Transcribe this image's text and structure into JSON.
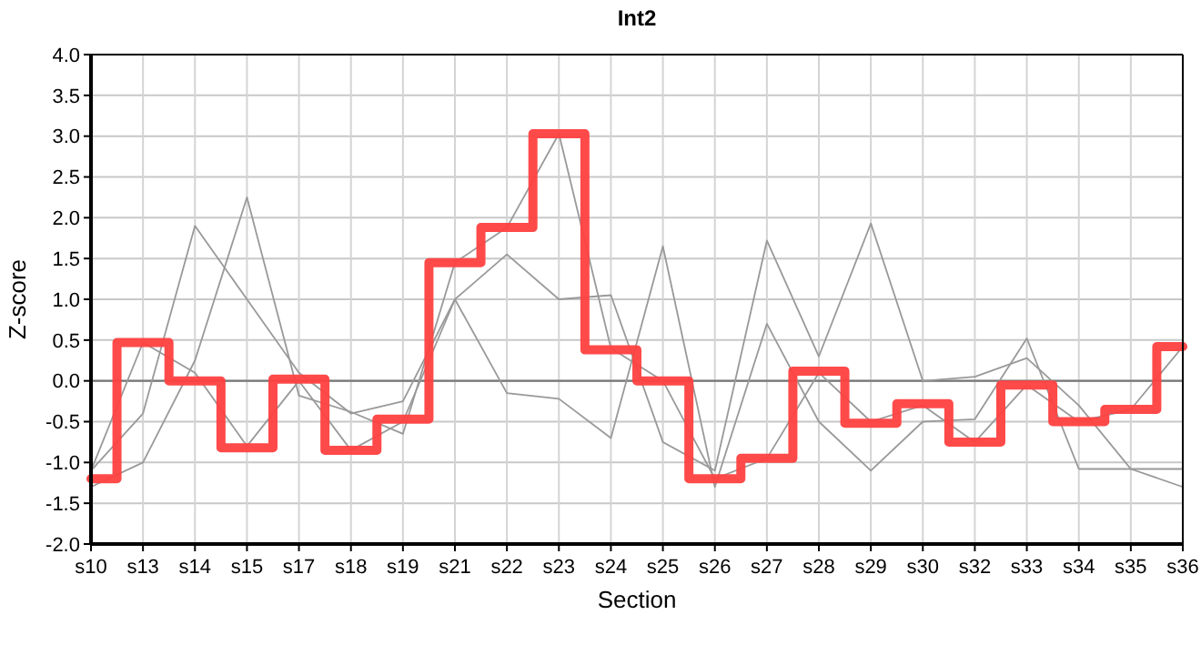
{
  "chart_data": {
    "type": "line",
    "title": "Int2",
    "xlabel": "Section",
    "ylabel": "Z-score",
    "categories": [
      "s10",
      "s13",
      "s14",
      "s15",
      "s17",
      "s18",
      "s19",
      "s21",
      "s22",
      "s23",
      "s24",
      "s25",
      "s26",
      "s27",
      "s28",
      "s29",
      "s30",
      "s32",
      "s33",
      "s34",
      "s35",
      "s36"
    ],
    "series": [
      {
        "color": "#999999",
        "values": [
          -1.1,
          -0.4,
          1.9,
          1.0,
          0.1,
          -0.4,
          -0.25,
          1.0,
          1.55,
          1.0,
          1.05,
          -0.75,
          -1.1,
          1.72,
          0.3,
          1.93,
          0.0,
          0.05,
          0.28,
          -0.3,
          -1.08,
          -1.08
        ]
      },
      {
        "color": "#999999",
        "values": [
          -1.3,
          -1.0,
          0.25,
          2.25,
          -0.18,
          -0.38,
          -0.65,
          1.45,
          1.88,
          3.03,
          0.4,
          0.0,
          -1.2,
          -0.95,
          0.1,
          -0.5,
          -0.3,
          -0.75,
          -0.05,
          -0.5,
          -0.35,
          0.42
        ]
      },
      {
        "color": "#999999",
        "values": [
          -1.1,
          0.47,
          0.1,
          -0.8,
          0.0,
          -0.85,
          -0.5,
          1.0,
          -0.15,
          -0.22,
          -0.7,
          1.65,
          -1.3,
          0.7,
          -0.5,
          -1.1,
          -0.5,
          -0.47,
          0.52,
          -1.08,
          -1.08,
          -1.3
        ]
      },
      {
        "type": "step",
        "color": "#ff4040",
        "values": [
          -1.2,
          0.47,
          0.0,
          -0.82,
          0.02,
          -0.85,
          -0.47,
          1.45,
          1.88,
          3.03,
          0.38,
          0.0,
          -1.2,
          -0.95,
          0.12,
          -0.52,
          -0.28,
          -0.75,
          -0.05,
          -0.5,
          -0.35,
          0.42
        ]
      }
    ],
    "ylim": [
      -2,
      4
    ],
    "yticks": [
      {
        "value": -2,
        "label": "-2.0"
      },
      {
        "value": -1.5,
        "label": "-1.5"
      },
      {
        "value": -1,
        "label": "-1.0"
      },
      {
        "value": -0.5,
        "label": "-0.5"
      },
      {
        "value": 0,
        "label": "0.0"
      },
      {
        "value": 0.5,
        "label": "0.5"
      },
      {
        "value": 1,
        "label": "1.0"
      },
      {
        "value": 1.5,
        "label": "1.5"
      },
      {
        "value": 2,
        "label": "2.0"
      },
      {
        "value": 2.5,
        "label": "2.5"
      },
      {
        "value": 3,
        "label": "3.0"
      },
      {
        "value": 3.5,
        "label": "3.5"
      },
      {
        "value": 4,
        "label": "4.0"
      }
    ],
    "grid": true,
    "ref_lines": [
      {
        "axis": "y",
        "value": 0,
        "color": "#777777"
      }
    ],
    "marker": "none"
  }
}
